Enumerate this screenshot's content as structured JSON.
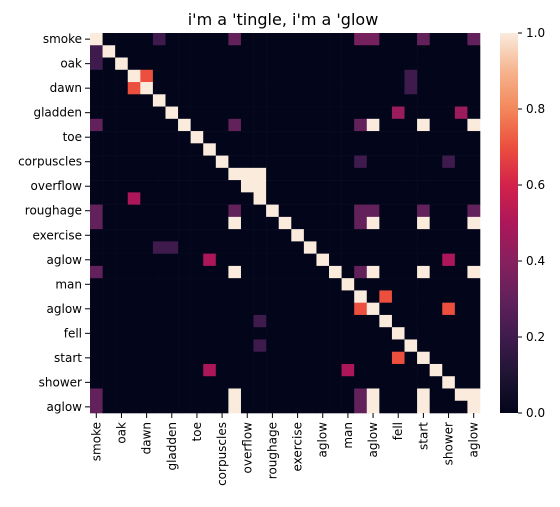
{
  "chart_data": {
    "type": "heatmap",
    "title": "i'm a 'tingle, i'm a 'glow",
    "labels": [
      "smoke",
      "oak",
      "dawn",
      "gladden",
      "toe",
      "corpuscles",
      "overflow",
      "roughage",
      "exercise",
      "aglow",
      "man",
      "aglow",
      "fell",
      "start",
      "shower",
      "aglow"
    ],
    "n": 31,
    "label_indices": [
      0,
      2,
      4,
      6,
      8,
      10,
      12,
      14,
      16,
      18,
      20,
      22,
      24,
      26,
      28,
      30
    ],
    "colorbar": {
      "min": 0.0,
      "max": 1.0,
      "ticks": [
        "0.0",
        "0.2",
        "0.4",
        "0.6",
        "0.8",
        "1.0"
      ],
      "colormap": "rocket"
    },
    "diagonal_value": 1.0,
    "off_diagonal_cells": [
      [
        0,
        5,
        0.2
      ],
      [
        0,
        11,
        0.3
      ],
      [
        0,
        21,
        0.35
      ],
      [
        0,
        22,
        0.35
      ],
      [
        0,
        26,
        0.3
      ],
      [
        0,
        30,
        0.3
      ],
      [
        1,
        0,
        0.2
      ],
      [
        2,
        0,
        0.2
      ],
      [
        3,
        4,
        0.7
      ],
      [
        4,
        3,
        0.7
      ],
      [
        3,
        25,
        0.2
      ],
      [
        4,
        25,
        0.2
      ],
      [
        6,
        24,
        0.45
      ],
      [
        6,
        29,
        0.45
      ],
      [
        7,
        0,
        0.3
      ],
      [
        7,
        11,
        0.3
      ],
      [
        7,
        21,
        0.3
      ],
      [
        7,
        22,
        1.0
      ],
      [
        7,
        26,
        1.0
      ],
      [
        7,
        30,
        1.0
      ],
      [
        10,
        21,
        0.2
      ],
      [
        10,
        28,
        0.2
      ],
      [
        11,
        13,
        1.0
      ],
      [
        12,
        12,
        1.0
      ],
      [
        12,
        13,
        1.0
      ],
      [
        11,
        12,
        1.0
      ],
      [
        13,
        3,
        0.5
      ],
      [
        14,
        0,
        0.3
      ],
      [
        14,
        11,
        0.3
      ],
      [
        14,
        21,
        0.3
      ],
      [
        14,
        22,
        0.3
      ],
      [
        14,
        26,
        0.3
      ],
      [
        14,
        30,
        0.3
      ],
      [
        15,
        0,
        0.3
      ],
      [
        15,
        11,
        1.0
      ],
      [
        15,
        21,
        0.3
      ],
      [
        15,
        22,
        1.0
      ],
      [
        15,
        26,
        1.0
      ],
      [
        15,
        30,
        1.0
      ],
      [
        17,
        5,
        0.2
      ],
      [
        17,
        6,
        0.2
      ],
      [
        18,
        9,
        0.5
      ],
      [
        18,
        28,
        0.5
      ],
      [
        19,
        0,
        0.3
      ],
      [
        19,
        11,
        1.0
      ],
      [
        19,
        21,
        0.3
      ],
      [
        19,
        22,
        1.0
      ],
      [
        19,
        26,
        1.0
      ],
      [
        19,
        30,
        1.0
      ],
      [
        21,
        23,
        0.7
      ],
      [
        22,
        21,
        0.7
      ],
      [
        22,
        28,
        0.7
      ],
      [
        23,
        13,
        0.2
      ],
      [
        25,
        13,
        0.2
      ],
      [
        26,
        24,
        0.7
      ],
      [
        27,
        9,
        0.5
      ],
      [
        27,
        20,
        0.5
      ],
      [
        29,
        0,
        0.3
      ],
      [
        29,
        11,
        1.0
      ],
      [
        29,
        21,
        0.3
      ],
      [
        29,
        22,
        1.0
      ],
      [
        29,
        26,
        1.0
      ],
      [
        29,
        30,
        1.0
      ],
      [
        30,
        0,
        0.3
      ],
      [
        30,
        11,
        1.0
      ],
      [
        30,
        21,
        0.3
      ],
      [
        30,
        22,
        1.0
      ],
      [
        30,
        26,
        1.0
      ]
    ]
  }
}
